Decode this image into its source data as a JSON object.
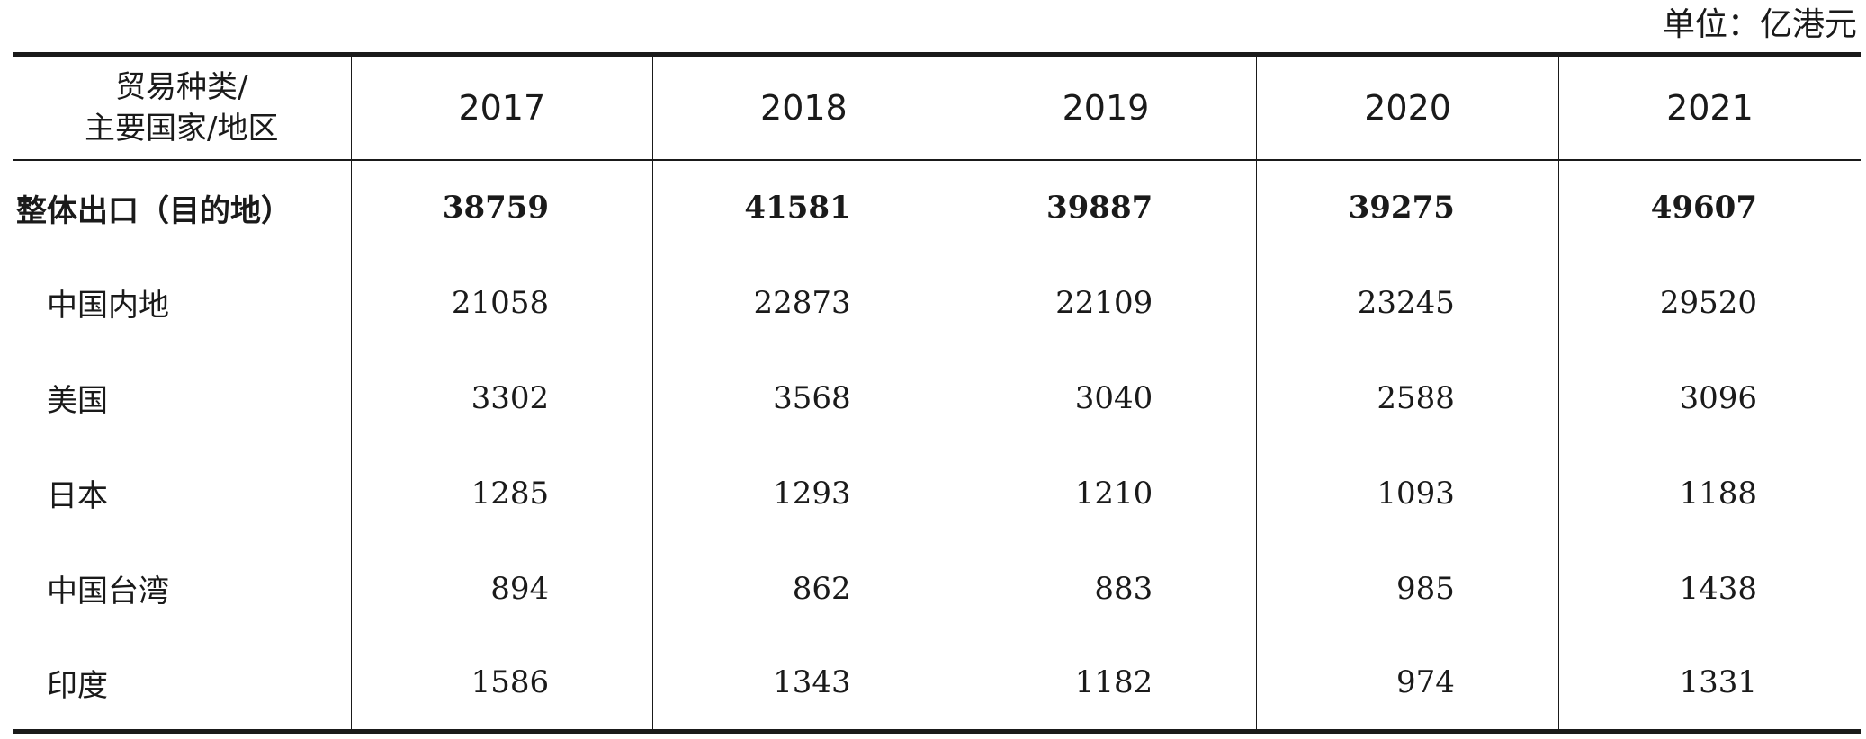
{
  "unit_label": "单位：亿港元",
  "table": {
    "header": {
      "first_line1": "贸易种类/",
      "first_line2": "主要国家/地区",
      "years": [
        "2017",
        "2018",
        "2019",
        "2020",
        "2021"
      ]
    },
    "rows": [
      {
        "label": "整体出口（目的地）",
        "values": [
          "38759",
          "41581",
          "39887",
          "39275",
          "49607"
        ]
      },
      {
        "label": "中国内地",
        "values": [
          "21058",
          "22873",
          "22109",
          "23245",
          "29520"
        ]
      },
      {
        "label": "美国",
        "values": [
          "3302",
          "3568",
          "3040",
          "2588",
          "3096"
        ]
      },
      {
        "label": "日本",
        "values": [
          "1285",
          "1293",
          "1210",
          "1093",
          "1188"
        ]
      },
      {
        "label": "中国台湾",
        "values": [
          "894",
          "862",
          "883",
          "985",
          "1438"
        ]
      },
      {
        "label": "印度",
        "values": [
          "1586",
          "1343",
          "1182",
          "974",
          "1331"
        ]
      }
    ]
  }
}
